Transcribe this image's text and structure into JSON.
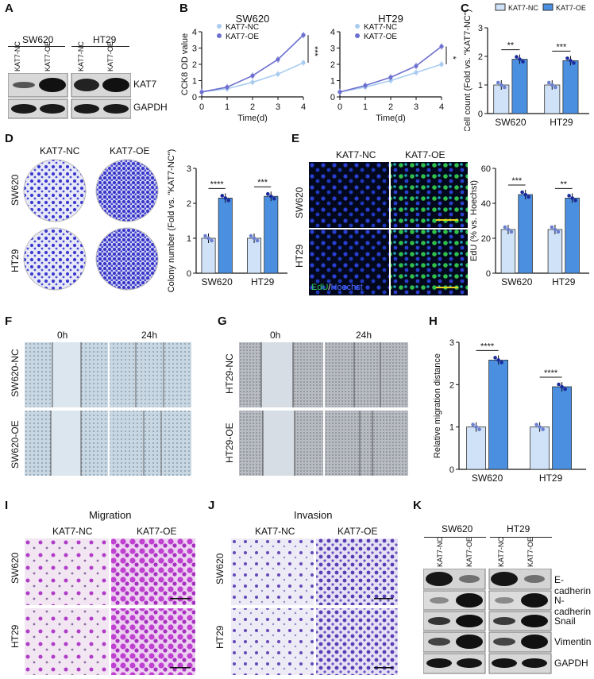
{
  "panels": {
    "A": "A",
    "B": "B",
    "C": "C",
    "D": "D",
    "E": "E",
    "F": "F",
    "G": "G",
    "H": "H",
    "I": "I",
    "J": "J",
    "K": "K"
  },
  "cells": {
    "sw620": "SW620",
    "ht29": "HT29"
  },
  "groups": {
    "nc": "KAT7-NC",
    "oe": "KAT7-OE"
  },
  "proteins": {
    "kat7": "KAT7",
    "gapdh": "GAPDH",
    "ecad": "E-cadherin",
    "ncad": "N-cadherin",
    "snail": "Snail",
    "vim": "Vimentin"
  },
  "time": {
    "t0": "0h",
    "t24": "24h"
  },
  "wound": {
    "sw_nc": "SW620-NC",
    "sw_oe": "SW620-OE",
    "ht_nc": "HT29-NC",
    "ht_oe": "HT29-OE"
  },
  "titles": {
    "migration": "Migration",
    "invasion": "Invasion"
  },
  "edu": {
    "edu": "EdU",
    "sep": "/",
    "hoechst": "Hoechst"
  },
  "sig": {
    "s2": "**",
    "s3": "***",
    "s4": "****",
    "s1": "*"
  },
  "colors": {
    "nc": "#cfe2f7",
    "oe": "#4a8fe0",
    "nc_line": "#a8ccf0",
    "oe_line": "#6d6fd0",
    "fluor_green": "#2fbf4a",
    "fluor_blue": "#2a3fd0",
    "crystal": "#3c3ad0",
    "stain": "#b03cc8"
  },
  "chart_data": [
    {
      "panel": "B-SW620",
      "type": "line",
      "title": "SW620",
      "xlabel": "Time(d)",
      "ylabel": "CCK8 OD value",
      "x": [
        0,
        1,
        2,
        3,
        4
      ],
      "xlim": [
        0,
        4
      ],
      "ylim": [
        0,
        4
      ],
      "yticks": [
        0,
        1,
        2,
        3,
        4
      ],
      "series": [
        {
          "name": "KAT7-NC",
          "values": [
            0.3,
            0.5,
            0.9,
            1.4,
            2.1
          ]
        },
        {
          "name": "KAT7-OE",
          "values": [
            0.3,
            0.6,
            1.3,
            2.3,
            3.8
          ]
        }
      ],
      "annotation": "***"
    },
    {
      "panel": "B-HT29",
      "type": "line",
      "title": "HT29",
      "xlabel": "Time(d)",
      "x": [
        0,
        1,
        2,
        3,
        4
      ],
      "xlim": [
        0,
        4
      ],
      "ylim": [
        0,
        4
      ],
      "yticks": [
        0,
        1,
        2,
        3,
        4
      ],
      "series": [
        {
          "name": "KAT7-NC",
          "values": [
            0.3,
            0.6,
            1.0,
            1.5,
            2.0
          ]
        },
        {
          "name": "KAT7-OE",
          "values": [
            0.3,
            0.7,
            1.2,
            1.9,
            3.1
          ]
        }
      ],
      "annotation": "*"
    },
    {
      "panel": "C",
      "type": "bar",
      "ylabel": "Cell count (Fold vs. \"KAT7-NC\")",
      "categories": [
        "SW620",
        "HT29"
      ],
      "ylim": [
        0,
        3
      ],
      "yticks": [
        0,
        1,
        2,
        3
      ],
      "series": [
        {
          "name": "KAT7-NC",
          "values": [
            1.0,
            1.0
          ]
        },
        {
          "name": "KAT7-OE",
          "values": [
            1.9,
            1.85
          ]
        }
      ],
      "annotations": [
        "**",
        "***"
      ]
    },
    {
      "panel": "D",
      "type": "bar",
      "ylabel": "Colony number (Fold vs. \"KAT7-NC\")",
      "categories": [
        "SW620",
        "HT29"
      ],
      "ylim": [
        0,
        3
      ],
      "yticks": [
        0,
        1,
        2,
        3
      ],
      "series": [
        {
          "values": [
            1.0,
            1.0
          ]
        },
        {
          "values": [
            2.15,
            2.2
          ]
        }
      ],
      "annotations": [
        "****",
        "***"
      ]
    },
    {
      "panel": "E",
      "type": "bar",
      "ylabel": "EdU (% vs. Hoechst)",
      "categories": [
        "SW620",
        "HT29"
      ],
      "ylim": [
        0,
        60
      ],
      "yticks": [
        0,
        20,
        40,
        60
      ],
      "series": [
        {
          "values": [
            25,
            25
          ]
        },
        {
          "values": [
            45,
            43
          ]
        }
      ],
      "annotations": [
        "***",
        "**"
      ]
    },
    {
      "panel": "H",
      "type": "bar",
      "ylabel": "Relative migration distance",
      "categories": [
        "SW620",
        "HT29"
      ],
      "ylim": [
        0,
        3
      ],
      "yticks": [
        0,
        1,
        2,
        3
      ],
      "series": [
        {
          "values": [
            1.0,
            1.0
          ]
        },
        {
          "values": [
            2.58,
            1.95
          ]
        }
      ],
      "annotations": [
        "****",
        "****"
      ]
    }
  ]
}
